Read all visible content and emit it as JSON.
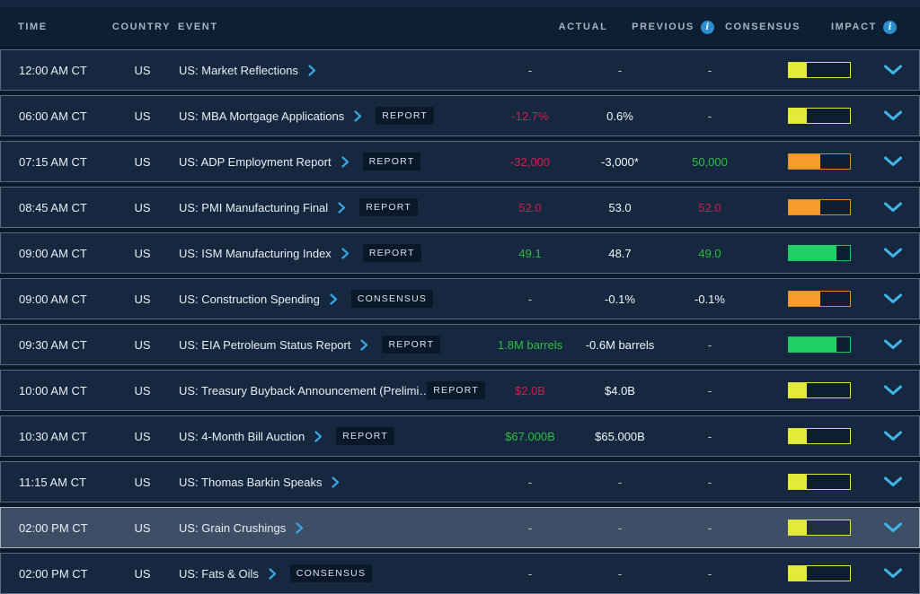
{
  "colors": {
    "red": "#d11e4e",
    "green": "#2bbf3e",
    "default": "#f2f6fa",
    "dash": "#c6cfd9",
    "link_blue": "#38a6e3",
    "expand_blue": "#41b5ea",
    "info_icon_bg": "#2e8ecd",
    "impact": {
      "yellow": {
        "fill": "#e4ea3b",
        "border": "#dce33a",
        "pct": 30
      },
      "orange": {
        "fill": "#f99a2d",
        "border": "#dd8d27",
        "pct": 52
      },
      "green": {
        "fill": "#1fd166",
        "border": "#1fc661",
        "pct": 78
      }
    }
  },
  "header": {
    "columns": [
      {
        "label": "TIME"
      },
      {
        "label": "COUNTRY"
      },
      {
        "label": "EVENT"
      },
      {
        "label": "ACTUAL"
      },
      {
        "label": "PREVIOUS",
        "info": true
      },
      {
        "label": "CONSENSUS"
      },
      {
        "label": "IMPACT",
        "info": true
      }
    ],
    "info_icon_glyph": "i"
  },
  "rows": [
    {
      "time": "12:00 AM CT",
      "country": "US",
      "event": "US: Market Reflections",
      "badge": null,
      "actual": {
        "text": "-",
        "color": "dash"
      },
      "previous": {
        "text": "-",
        "color": "dash"
      },
      "consensus": {
        "text": "-",
        "color": "dash"
      },
      "impact": "yellow",
      "highlighted": false
    },
    {
      "time": "06:00 AM CT",
      "country": "US",
      "event": "US: MBA Mortgage Applications",
      "badge": "REPORT",
      "actual": {
        "text": "-12.7%",
        "color": "red"
      },
      "previous": {
        "text": "0.6%",
        "color": "default"
      },
      "consensus": {
        "text": "-",
        "color": "dash"
      },
      "impact": "yellow",
      "highlighted": false
    },
    {
      "time": "07:15 AM CT",
      "country": "US",
      "event": "US: ADP Employment Report",
      "badge": "REPORT",
      "actual": {
        "text": "-32,000",
        "color": "red"
      },
      "previous": {
        "text": "-3,000*",
        "color": "default"
      },
      "consensus": {
        "text": "50,000",
        "color": "green"
      },
      "impact": "orange",
      "highlighted": false
    },
    {
      "time": "08:45 AM CT",
      "country": "US",
      "event": "US: PMI Manufacturing Final",
      "badge": "REPORT",
      "actual": {
        "text": "52.0",
        "color": "red"
      },
      "previous": {
        "text": "53.0",
        "color": "default"
      },
      "consensus": {
        "text": "52.0",
        "color": "red"
      },
      "impact": "orange",
      "highlighted": false
    },
    {
      "time": "09:00 AM CT",
      "country": "US",
      "event": "US: ISM Manufacturing Index",
      "badge": "REPORT",
      "actual": {
        "text": "49.1",
        "color": "green"
      },
      "previous": {
        "text": "48.7",
        "color": "default"
      },
      "consensus": {
        "text": "49.0",
        "color": "green"
      },
      "impact": "green",
      "highlighted": false
    },
    {
      "time": "09:00 AM CT",
      "country": "US",
      "event": "US: Construction Spending",
      "badge": "CONSENSUS",
      "actual": {
        "text": "-",
        "color": "dash"
      },
      "previous": {
        "text": "-0.1%",
        "color": "default"
      },
      "consensus": {
        "text": "-0.1%",
        "color": "default"
      },
      "impact": "orange",
      "highlighted": false
    },
    {
      "time": "09:30 AM CT",
      "country": "US",
      "event": "US: EIA Petroleum Status Report",
      "badge": "REPORT",
      "actual": {
        "text": "1.8M barrels",
        "color": "green"
      },
      "previous": {
        "text": "-0.6M barrels",
        "color": "default"
      },
      "consensus": {
        "text": "-",
        "color": "dash"
      },
      "impact": "green",
      "highlighted": false
    },
    {
      "time": "10:00 AM CT",
      "country": "US",
      "event": "US: Treasury Buyback Announcement (Prelimi…",
      "badge": "REPORT",
      "actual": {
        "text": "$2.0B",
        "color": "red"
      },
      "previous": {
        "text": "$4.0B",
        "color": "default"
      },
      "consensus": {
        "text": "-",
        "color": "dash"
      },
      "impact": "yellow",
      "highlighted": false
    },
    {
      "time": "10:30 AM CT",
      "country": "US",
      "event": "US: 4-Month Bill Auction",
      "badge": "REPORT",
      "actual": {
        "text": "$67.000B",
        "color": "green"
      },
      "previous": {
        "text": "$65.000B",
        "color": "default"
      },
      "consensus": {
        "text": "-",
        "color": "dash"
      },
      "impact": "yellow",
      "highlighted": false
    },
    {
      "time": "11:15 AM CT",
      "country": "US",
      "event": "US: Thomas Barkin Speaks",
      "badge": null,
      "actual": {
        "text": "-",
        "color": "dash"
      },
      "previous": {
        "text": "-",
        "color": "dash"
      },
      "consensus": {
        "text": "-",
        "color": "dash"
      },
      "impact": "yellow",
      "highlighted": false
    },
    {
      "time": "02:00 PM CT",
      "country": "US",
      "event": "US: Grain Crushings",
      "badge": null,
      "actual": {
        "text": "-",
        "color": "dash"
      },
      "previous": {
        "text": "-",
        "color": "dash"
      },
      "consensus": {
        "text": "-",
        "color": "dash"
      },
      "impact": "yellow",
      "highlighted": true
    },
    {
      "time": "02:00 PM CT",
      "country": "US",
      "event": "US: Fats & Oils",
      "badge": "CONSENSUS",
      "actual": {
        "text": "-",
        "color": "dash"
      },
      "previous": {
        "text": "-",
        "color": "dash"
      },
      "consensus": {
        "text": "-",
        "color": "dash"
      },
      "impact": "yellow",
      "highlighted": false
    }
  ]
}
